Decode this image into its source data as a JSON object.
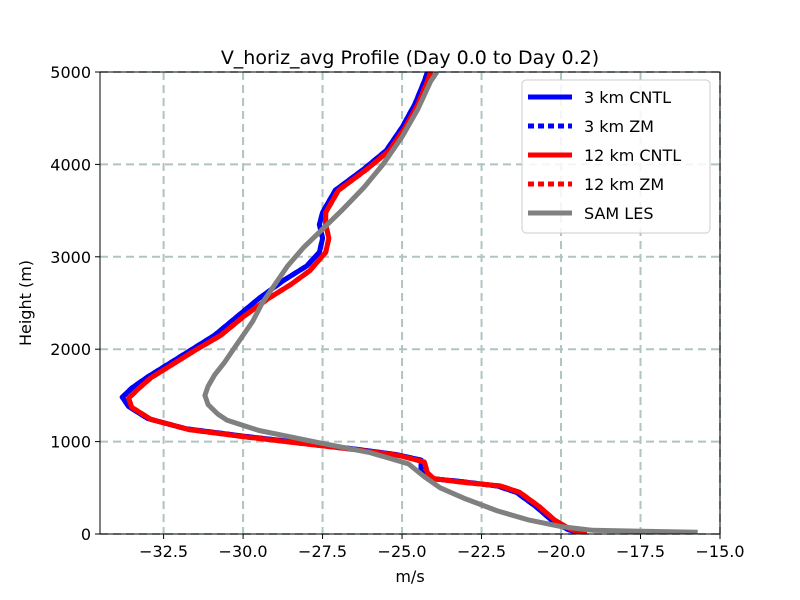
{
  "chart_data": {
    "type": "line",
    "title": "V_horiz_avg Profile (Day 0.0 to Day 0.2)",
    "xlabel": "m/s",
    "ylabel": "Height (m)",
    "xlim": [
      -34.5,
      -15.0
    ],
    "ylim": [
      0,
      5000
    ],
    "xticks": [
      -32.5,
      -30.0,
      -27.5,
      -25.0,
      -22.5,
      -20.0,
      -17.5,
      -15.0
    ],
    "xtick_labels": [
      "−32.5",
      "−30.0",
      "−27.5",
      "−25.0",
      "−22.5",
      "−20.0",
      "−17.5",
      "−15.0"
    ],
    "yticks": [
      0,
      1000,
      2000,
      3000,
      4000,
      5000
    ],
    "ytick_labels": [
      "0",
      "1000",
      "2000",
      "3000",
      "4000",
      "5000"
    ],
    "grid": true,
    "legend_position": "top-right",
    "series": [
      {
        "name": "3 km CNTL",
        "color": "#0000ff",
        "style": "solid",
        "points": [
          [
            -19.3,
            0
          ],
          [
            -19.8,
            50
          ],
          [
            -20.3,
            150
          ],
          [
            -20.8,
            300
          ],
          [
            -21.4,
            450
          ],
          [
            -22.0,
            520
          ],
          [
            -23.2,
            570
          ],
          [
            -24.1,
            600
          ],
          [
            -24.4,
            680
          ],
          [
            -24.4,
            800
          ],
          [
            -25.2,
            860
          ],
          [
            -26.5,
            920
          ],
          [
            -28.0,
            980
          ],
          [
            -30.0,
            1060
          ],
          [
            -31.8,
            1140
          ],
          [
            -33.0,
            1250
          ],
          [
            -33.6,
            1380
          ],
          [
            -33.8,
            1480
          ],
          [
            -33.5,
            1580
          ],
          [
            -33.0,
            1700
          ],
          [
            -32.3,
            1850
          ],
          [
            -31.6,
            2000
          ],
          [
            -30.9,
            2150
          ],
          [
            -30.2,
            2350
          ],
          [
            -29.5,
            2550
          ],
          [
            -28.7,
            2750
          ],
          [
            -28.0,
            2900
          ],
          [
            -27.6,
            3050
          ],
          [
            -27.5,
            3200
          ],
          [
            -27.6,
            3350
          ],
          [
            -27.5,
            3480
          ],
          [
            -27.1,
            3720
          ],
          [
            -26.2,
            3950
          ],
          [
            -25.5,
            4150
          ],
          [
            -25.0,
            4400
          ],
          [
            -24.6,
            4650
          ],
          [
            -24.3,
            4900
          ],
          [
            -24.2,
            5000
          ]
        ]
      },
      {
        "name": "3 km ZM",
        "color": "#0000ff",
        "style": "dashed",
        "points": [
          [
            -19.3,
            0
          ],
          [
            -19.8,
            50
          ],
          [
            -20.3,
            150
          ],
          [
            -20.8,
            300
          ],
          [
            -21.4,
            450
          ],
          [
            -22.0,
            520
          ],
          [
            -23.2,
            570
          ],
          [
            -24.1,
            600
          ],
          [
            -24.4,
            680
          ],
          [
            -24.4,
            800
          ],
          [
            -25.2,
            860
          ],
          [
            -26.5,
            920
          ],
          [
            -28.0,
            980
          ],
          [
            -30.0,
            1060
          ],
          [
            -31.8,
            1140
          ],
          [
            -33.0,
            1250
          ],
          [
            -33.6,
            1380
          ],
          [
            -33.8,
            1480
          ],
          [
            -33.5,
            1580
          ],
          [
            -33.0,
            1700
          ],
          [
            -32.3,
            1850
          ],
          [
            -31.6,
            2000
          ],
          [
            -30.9,
            2150
          ],
          [
            -30.2,
            2350
          ],
          [
            -29.5,
            2550
          ],
          [
            -28.7,
            2750
          ],
          [
            -28.0,
            2900
          ],
          [
            -27.6,
            3050
          ],
          [
            -27.5,
            3200
          ],
          [
            -27.6,
            3350
          ],
          [
            -27.5,
            3480
          ],
          [
            -27.1,
            3720
          ],
          [
            -26.2,
            3950
          ],
          [
            -25.5,
            4150
          ],
          [
            -25.0,
            4400
          ],
          [
            -24.6,
            4650
          ],
          [
            -24.3,
            4900
          ],
          [
            -24.2,
            5000
          ]
        ]
      },
      {
        "name": "12 km CNTL",
        "color": "#ff0000",
        "style": "solid",
        "points": [
          [
            -19.2,
            0
          ],
          [
            -19.7,
            50
          ],
          [
            -20.2,
            150
          ],
          [
            -20.7,
            300
          ],
          [
            -21.3,
            450
          ],
          [
            -21.9,
            520
          ],
          [
            -23.1,
            560
          ],
          [
            -24.0,
            600
          ],
          [
            -24.2,
            660
          ],
          [
            -24.3,
            780
          ],
          [
            -25.1,
            850
          ],
          [
            -26.4,
            910
          ],
          [
            -27.9,
            970
          ],
          [
            -29.9,
            1050
          ],
          [
            -31.7,
            1130
          ],
          [
            -32.9,
            1240
          ],
          [
            -33.5,
            1370
          ],
          [
            -33.6,
            1470
          ],
          [
            -33.3,
            1570
          ],
          [
            -32.9,
            1690
          ],
          [
            -32.2,
            1840
          ],
          [
            -31.5,
            1990
          ],
          [
            -30.7,
            2150
          ],
          [
            -30.0,
            2350
          ],
          [
            -29.2,
            2550
          ],
          [
            -28.5,
            2700
          ],
          [
            -27.9,
            2850
          ],
          [
            -27.4,
            3050
          ],
          [
            -27.3,
            3200
          ],
          [
            -27.4,
            3350
          ],
          [
            -27.4,
            3480
          ],
          [
            -27.0,
            3720
          ],
          [
            -26.1,
            3950
          ],
          [
            -25.4,
            4150
          ],
          [
            -24.9,
            4400
          ],
          [
            -24.5,
            4650
          ],
          [
            -24.2,
            4900
          ],
          [
            -24.1,
            5000
          ]
        ]
      },
      {
        "name": "12 km ZM",
        "color": "#ff0000",
        "style": "dashed",
        "points": [
          [
            -19.2,
            0
          ],
          [
            -19.7,
            50
          ],
          [
            -20.2,
            150
          ],
          [
            -20.7,
            300
          ],
          [
            -21.3,
            450
          ],
          [
            -21.9,
            520
          ],
          [
            -23.1,
            560
          ],
          [
            -24.0,
            600
          ],
          [
            -24.2,
            660
          ],
          [
            -24.3,
            780
          ],
          [
            -25.1,
            850
          ],
          [
            -26.4,
            910
          ],
          [
            -27.9,
            970
          ],
          [
            -29.9,
            1050
          ],
          [
            -31.7,
            1130
          ],
          [
            -32.9,
            1240
          ],
          [
            -33.5,
            1370
          ],
          [
            -33.6,
            1470
          ],
          [
            -33.3,
            1570
          ],
          [
            -32.9,
            1690
          ],
          [
            -32.2,
            1840
          ],
          [
            -31.5,
            1990
          ],
          [
            -30.7,
            2150
          ],
          [
            -30.0,
            2350
          ],
          [
            -29.2,
            2550
          ],
          [
            -28.5,
            2700
          ],
          [
            -27.9,
            2850
          ],
          [
            -27.4,
            3050
          ],
          [
            -27.3,
            3200
          ],
          [
            -27.4,
            3350
          ],
          [
            -27.4,
            3480
          ],
          [
            -27.0,
            3720
          ],
          [
            -26.1,
            3950
          ],
          [
            -25.4,
            4150
          ],
          [
            -24.9,
            4400
          ],
          [
            -24.5,
            4650
          ],
          [
            -24.2,
            4900
          ],
          [
            -24.1,
            5000
          ]
        ]
      },
      {
        "name": "SAM LES",
        "color": "#808080",
        "style": "solid",
        "points": [
          [
            -15.7,
            20
          ],
          [
            -19.0,
            40
          ],
          [
            -20.0,
            80
          ],
          [
            -21.0,
            150
          ],
          [
            -22.0,
            250
          ],
          [
            -23.0,
            380
          ],
          [
            -23.8,
            500
          ],
          [
            -24.3,
            620
          ],
          [
            -24.8,
            760
          ],
          [
            -26.0,
            880
          ],
          [
            -27.5,
            980
          ],
          [
            -29.5,
            1120
          ],
          [
            -30.5,
            1230
          ],
          [
            -30.8,
            1300
          ],
          [
            -31.1,
            1400
          ],
          [
            -31.2,
            1500
          ],
          [
            -31.1,
            1600
          ],
          [
            -30.9,
            1720
          ],
          [
            -30.6,
            1850
          ],
          [
            -30.3,
            2000
          ],
          [
            -30.0,
            2150
          ],
          [
            -29.7,
            2300
          ],
          [
            -29.4,
            2500
          ],
          [
            -29.0,
            2700
          ],
          [
            -28.6,
            2900
          ],
          [
            -28.1,
            3100
          ],
          [
            -27.5,
            3300
          ],
          [
            -26.9,
            3500
          ],
          [
            -26.2,
            3750
          ],
          [
            -25.6,
            4000
          ],
          [
            -25.0,
            4300
          ],
          [
            -24.5,
            4600
          ],
          [
            -24.1,
            4900
          ],
          [
            -23.9,
            5000
          ]
        ]
      }
    ]
  }
}
